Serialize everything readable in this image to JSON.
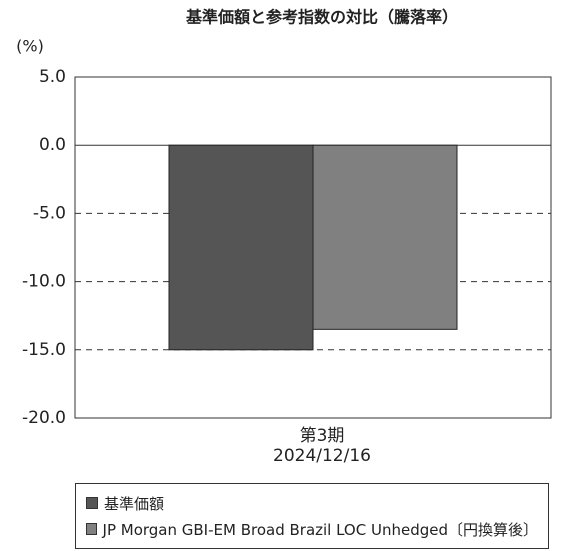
{
  "chart_data": {
    "type": "bar",
    "title": "基準価額と参考指数の対比（騰落率）",
    "y_unit": "(%)",
    "categories": [
      "第3期\n2024/12/16"
    ],
    "series": [
      {
        "name": "基準価額",
        "color": "#555555",
        "values": [
          -15.0
        ]
      },
      {
        "name": "JP Morgan GBI-EM Broad Brazil LOC Unhedged〔円換算後〕",
        "color": "#808080",
        "values": [
          -13.5
        ]
      }
    ],
    "ylim": [
      -20,
      5
    ],
    "yticks": [
      {
        "value": 5,
        "label": "5.0"
      },
      {
        "value": 0,
        "label": "0.0"
      },
      {
        "value": -5,
        "label": "-5.0"
      },
      {
        "value": -10,
        "label": "-10.0"
      },
      {
        "value": -15,
        "label": "-15.0"
      },
      {
        "value": -20,
        "label": "-20.0"
      }
    ],
    "grid": true
  }
}
